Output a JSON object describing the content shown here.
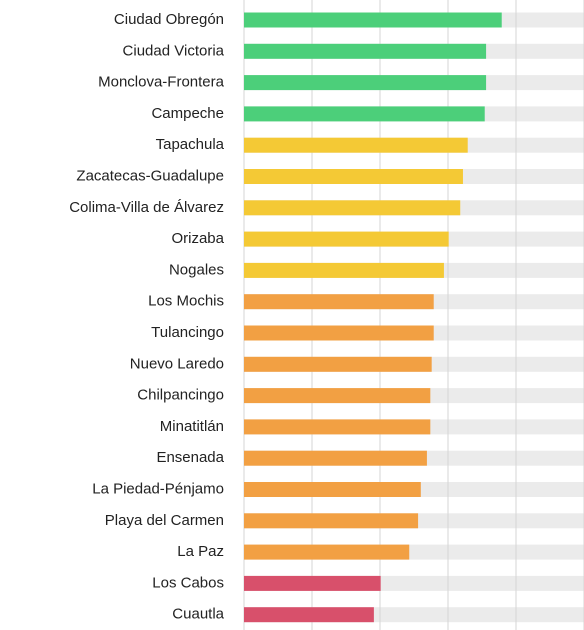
{
  "chart_data": {
    "type": "hbar",
    "categories": [
      "Ciudad Obregón",
      "Ciudad Victoria",
      "Monclova-Frontera",
      "Campeche",
      "Tapachula",
      "Zacatecas-Guadalupe",
      "Colima-Villa de Álvarez",
      "Orizaba",
      "Nogales",
      "Los Mochis",
      "Tulancingo",
      "Nuevo Laredo",
      "Chilpancingo",
      "Minatitlán",
      "Ensenada",
      "La Piedad-Pénjamo",
      "Playa del Carmen",
      "La Paz",
      "Los Cabos",
      "Cuautla"
    ],
    "values": [
      3.79,
      3.56,
      3.56,
      3.54,
      3.29,
      3.22,
      3.18,
      3.01,
      2.94,
      2.79,
      2.79,
      2.76,
      2.74,
      2.74,
      2.69,
      2.6,
      2.56,
      2.43,
      2.01,
      1.91
    ],
    "colors": [
      "#4ccf7a",
      "#4ccf7a",
      "#4ccf7a",
      "#4ccf7a",
      "#f4c935",
      "#f4c935",
      "#f4c935",
      "#f4c935",
      "#f4c935",
      "#f2a043",
      "#f2a043",
      "#f2a043",
      "#f2a043",
      "#f2a043",
      "#f2a043",
      "#f2a043",
      "#f2a043",
      "#f2a043",
      "#d8506b",
      "#d8506b"
    ],
    "xlim": [
      0,
      5
    ],
    "xticks": [
      0,
      1,
      2,
      3,
      4,
      5
    ],
    "grid": true
  }
}
